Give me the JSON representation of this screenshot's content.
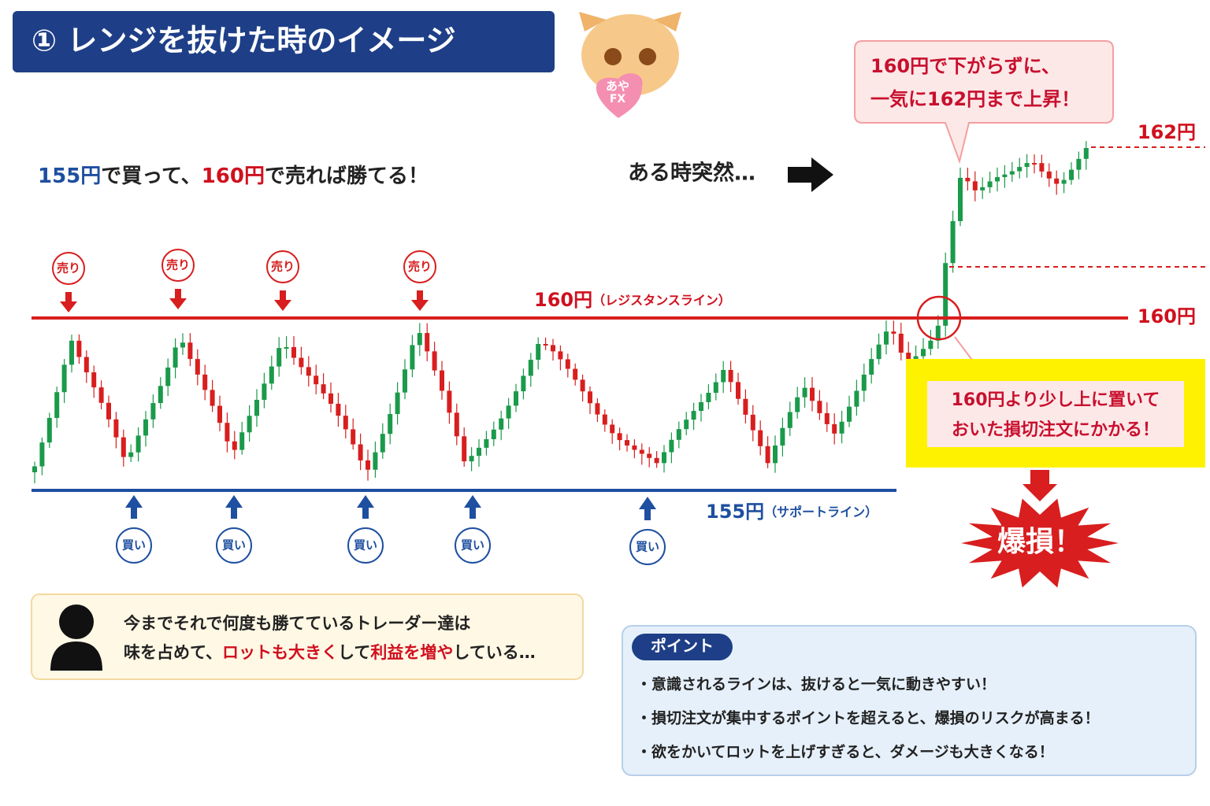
{
  "header": {
    "title": "① レンジを抜けた時のイメージ"
  },
  "logo": {
    "line1": "あや",
    "line2": "FX"
  },
  "strategy": {
    "parts": [
      "155円",
      "で買って、",
      "160円",
      "で売れば勝てる！"
    ]
  },
  "sudden": "ある時突然…",
  "callout_top": {
    "lines": [
      "160円で下がらずに、",
      "一気に162円まで上昇！"
    ]
  },
  "levels": {
    "high": "162円",
    "resistance_right": "160円",
    "resistance": {
      "price": "160円",
      "note": "（レジスタンスライン）"
    },
    "support": {
      "price": "155円",
      "note": "（サポートライン）"
    }
  },
  "sell_signals": [
    "売り",
    "売り",
    "売り",
    "売り"
  ],
  "buy_signals": [
    "買い",
    "買い",
    "買い",
    "買い",
    "買い"
  ],
  "stop_callout": {
    "lines": [
      "160円より少し上に置いて",
      "おいた損切注文にかかる！"
    ]
  },
  "blowup": "爆損！",
  "trader_note": {
    "line1": "今までそれで何度も勝てているトレーダー達は",
    "line2": [
      "味を占めて、",
      "ロットも大きく",
      "して",
      "利益を増や",
      "している…"
    ]
  },
  "points": {
    "title": "ポイント",
    "items": [
      "・意識されるラインは、抜けると一気に動きやすい！",
      "・損切注文が集中するポイントを超えると、爆損のリスクが高まる！",
      "・欲をかいてロットを上げすぎると、ダメージも大きくなる！"
    ]
  }
}
